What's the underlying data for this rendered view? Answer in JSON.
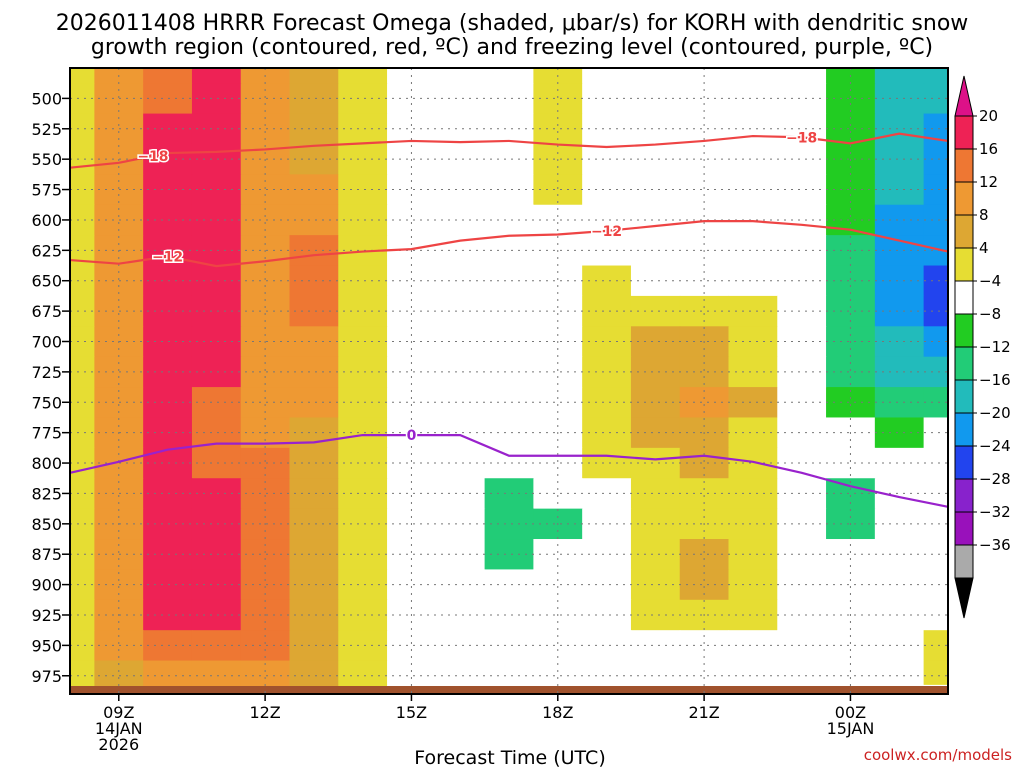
{
  "chart_data": {
    "type": "heatmap",
    "title_line1": "2026011408 HRRR Forecast Omega (shaded, μbar/s) for KORH with dendritic snow",
    "title_line2": "growth region (contoured, red, ºC) and freezing level (contoured, purple, ºC)",
    "xlabel": "Forecast Time (UTC)",
    "credit": "coolwx.com/models",
    "x_hours": [
      8,
      9,
      10,
      11,
      12,
      13,
      14,
      15,
      16,
      17,
      18,
      19,
      20,
      21,
      22,
      23,
      24,
      25,
      26
    ],
    "xlim": [
      8,
      26
    ],
    "x_ticks": [
      {
        "hour": 9,
        "line1": "09Z",
        "line2": "14JAN",
        "line3": "2026"
      },
      {
        "hour": 12,
        "line1": "12Z"
      },
      {
        "hour": 15,
        "line1": "15Z"
      },
      {
        "hour": 18,
        "line1": "18Z"
      },
      {
        "hour": 21,
        "line1": "21Z"
      },
      {
        "hour": 24,
        "line1": "00Z",
        "line2": "15JAN"
      }
    ],
    "levels": [
      475,
      500,
      525,
      550,
      575,
      600,
      625,
      650,
      675,
      700,
      725,
      750,
      775,
      800,
      825,
      850,
      875,
      900,
      925,
      950,
      975,
      990
    ],
    "ylim": [
      475,
      990
    ],
    "y_ticks": [
      500,
      525,
      550,
      575,
      600,
      625,
      650,
      675,
      700,
      725,
      750,
      775,
      800,
      825,
      850,
      875,
      900,
      925,
      950,
      975
    ],
    "colorbar": {
      "labels": [
        "20",
        "16",
        "12",
        "8",
        "4",
        "−4",
        "−8",
        "−12",
        "−16",
        "−20",
        "−24",
        "−28",
        "−32",
        "−36"
      ],
      "colors": [
        "#ee2255",
        "#ee7733",
        "#ee9933",
        "#dda733",
        "#e6dd33",
        "#ffffff",
        "#22cc22",
        "#22cc77",
        "#22bbbb",
        "#1199ee",
        "#2244ee",
        "#8822cc",
        "#9911bb",
        "#aaaaaa"
      ],
      "top_arrow_color": "#dd1188",
      "bottom_arrow_color": "#000000"
    },
    "omega_field": [
      [
        4,
        12,
        16,
        20,
        12,
        8,
        4,
        0,
        0,
        0,
        4,
        0,
        0,
        0,
        0,
        0,
        -4,
        -12,
        -12
      ],
      [
        4,
        12,
        16,
        20,
        12,
        8,
        4,
        0,
        0,
        0,
        4,
        0,
        0,
        0,
        0,
        0,
        -4,
        -12,
        -12
      ],
      [
        4,
        12,
        20,
        20,
        12,
        8,
        4,
        0,
        0,
        0,
        4,
        0,
        0,
        0,
        0,
        0,
        -4,
        -12,
        -16
      ],
      [
        4,
        12,
        20,
        20,
        12,
        8,
        4,
        0,
        0,
        0,
        4,
        0,
        0,
        0,
        0,
        0,
        -4,
        -12,
        -16
      ],
      [
        4,
        12,
        20,
        20,
        12,
        12,
        4,
        0,
        0,
        0,
        4,
        0,
        0,
        0,
        0,
        0,
        -4,
        -12,
        -16
      ],
      [
        4,
        12,
        20,
        20,
        12,
        12,
        4,
        0,
        0,
        0,
        0,
        0,
        0,
        0,
        0,
        0,
        -4,
        -16,
        -16
      ],
      [
        4,
        12,
        20,
        20,
        12,
        16,
        4,
        0,
        0,
        0,
        0,
        0,
        0,
        0,
        0,
        0,
        -8,
        -16,
        -16
      ],
      [
        4,
        12,
        20,
        20,
        12,
        16,
        4,
        0,
        0,
        0,
        0,
        4,
        0,
        0,
        0,
        0,
        -8,
        -16,
        -20
      ],
      [
        4,
        12,
        20,
        20,
        12,
        16,
        4,
        0,
        0,
        0,
        0,
        4,
        4,
        4,
        4,
        0,
        -8,
        -16,
        -20
      ],
      [
        4,
        12,
        20,
        20,
        12,
        12,
        4,
        0,
        0,
        0,
        0,
        4,
        8,
        8,
        4,
        0,
        -8,
        -12,
        -16
      ],
      [
        4,
        12,
        20,
        20,
        12,
        12,
        4,
        0,
        0,
        0,
        0,
        4,
        8,
        8,
        4,
        0,
        -8,
        -12,
        -12
      ],
      [
        4,
        12,
        20,
        16,
        12,
        12,
        4,
        0,
        0,
        0,
        0,
        4,
        8,
        12,
        8,
        0,
        -4,
        -8,
        -8
      ],
      [
        4,
        12,
        20,
        16,
        12,
        8,
        4,
        0,
        0,
        0,
        0,
        4,
        8,
        8,
        4,
        0,
        0,
        -4,
        0
      ],
      [
        4,
        12,
        20,
        16,
        16,
        8,
        4,
        0,
        0,
        0,
        0,
        4,
        4,
        8,
        4,
        0,
        0,
        0,
        0
      ],
      [
        4,
        12,
        20,
        20,
        16,
        8,
        4,
        0,
        0,
        -8,
        0,
        0,
        4,
        4,
        4,
        0,
        -8,
        0,
        0
      ],
      [
        4,
        12,
        20,
        20,
        16,
        8,
        4,
        0,
        0,
        -8,
        -8,
        0,
        4,
        4,
        4,
        0,
        -8,
        0,
        0
      ],
      [
        4,
        12,
        20,
        20,
        16,
        8,
        4,
        0,
        0,
        -8,
        0,
        0,
        4,
        8,
        4,
        0,
        0,
        0,
        0
      ],
      [
        4,
        12,
        20,
        20,
        16,
        8,
        4,
        0,
        0,
        0,
        0,
        0,
        4,
        8,
        4,
        0,
        0,
        0,
        0
      ],
      [
        4,
        12,
        20,
        20,
        16,
        8,
        4,
        0,
        0,
        0,
        0,
        0,
        4,
        4,
        4,
        0,
        0,
        0,
        0
      ],
      [
        4,
        12,
        16,
        16,
        16,
        8,
        4,
        0,
        0,
        0,
        0,
        0,
        0,
        0,
        0,
        0,
        0,
        0,
        4
      ],
      [
        4,
        8,
        12,
        12,
        12,
        8,
        4,
        0,
        0,
        0,
        0,
        0,
        0,
        0,
        0,
        0,
        0,
        0,
        4
      ],
      [
        4,
        8,
        12,
        12,
        12,
        8,
        4,
        0,
        0,
        0,
        0,
        0,
        0,
        0,
        0,
        0,
        0,
        0,
        0
      ]
    ],
    "contours": [
      {
        "name": "dgz-minus18",
        "label": "−18",
        "color": "#ee4444",
        "label_at": [
          9.7,
          23.0
        ],
        "points": [
          [
            8,
            557
          ],
          [
            9,
            553
          ],
          [
            10,
            545
          ],
          [
            11,
            544
          ],
          [
            12,
            542
          ],
          [
            13,
            539
          ],
          [
            14,
            537
          ],
          [
            15,
            535
          ],
          [
            16,
            536
          ],
          [
            17,
            535
          ],
          [
            18,
            538
          ],
          [
            19,
            540
          ],
          [
            20,
            538
          ],
          [
            21,
            535
          ],
          [
            22,
            531
          ],
          [
            23,
            532
          ],
          [
            24,
            537
          ],
          [
            25,
            529
          ],
          [
            26,
            535
          ]
        ]
      },
      {
        "name": "dgz-minus12",
        "label": "−12",
        "color": "#ee4444",
        "label_at": [
          10.0,
          19.0
        ],
        "points": [
          [
            8,
            633
          ],
          [
            9,
            636
          ],
          [
            10,
            630
          ],
          [
            11,
            638
          ],
          [
            12,
            634
          ],
          [
            13,
            629
          ],
          [
            14,
            626
          ],
          [
            15,
            624
          ],
          [
            16,
            617
          ],
          [
            17,
            613
          ],
          [
            18,
            612
          ],
          [
            19,
            609
          ],
          [
            20,
            605
          ],
          [
            21,
            601
          ],
          [
            22,
            601
          ],
          [
            23,
            604
          ],
          [
            24,
            608
          ],
          [
            25,
            617
          ],
          [
            26,
            626
          ]
        ]
      },
      {
        "name": "freezing-level",
        "label": "0",
        "color": "#9922cc",
        "label_at": [
          15.0
        ],
        "points": [
          [
            8,
            808
          ],
          [
            9,
            799
          ],
          [
            10,
            789
          ],
          [
            11,
            784
          ],
          [
            12,
            784
          ],
          [
            13,
            783
          ],
          [
            14,
            777
          ],
          [
            15,
            777
          ],
          [
            16,
            777
          ],
          [
            17,
            794
          ],
          [
            18,
            794
          ],
          [
            19,
            794
          ],
          [
            20,
            797
          ],
          [
            21,
            794
          ],
          [
            22,
            799
          ],
          [
            23,
            808
          ],
          [
            24,
            819
          ],
          [
            25,
            828
          ],
          [
            26,
            836
          ]
        ]
      }
    ]
  }
}
